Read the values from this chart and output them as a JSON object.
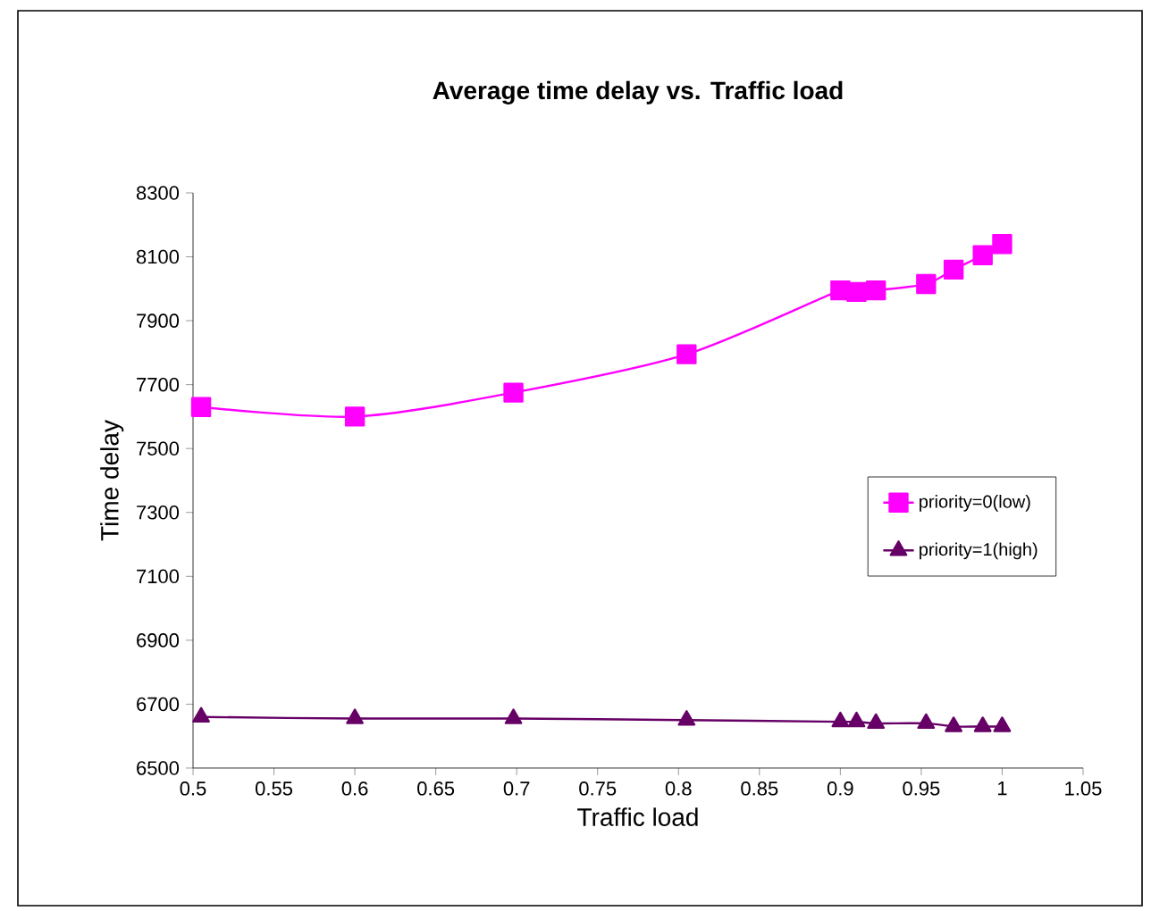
{
  "chart_data": {
    "type": "line",
    "title": "Average time delay vs. Traffic load",
    "xlabel": "Traffic load",
    "ylabel": "Time delay",
    "x": [
      0.505,
      0.6,
      0.698,
      0.805,
      0.9,
      0.91,
      0.922,
      0.953,
      0.97,
      0.988,
      1.0
    ],
    "series": [
      {
        "name": "priority=0(low)",
        "color": "#ff00ff",
        "marker": "square",
        "values": [
          7630,
          7600,
          7675,
          7795,
          7995,
          7990,
          7995,
          8015,
          8060,
          8105,
          8140
        ]
      },
      {
        "name": "priority=1(high)",
        "color": "#660066",
        "marker": "triangle",
        "values": [
          6660,
          6655,
          6655,
          6650,
          6645,
          6645,
          6640,
          6640,
          6630,
          6630,
          6630
        ]
      }
    ],
    "xlim": [
      0.5,
      1.05
    ],
    "xticks": [
      0.5,
      0.55,
      0.6,
      0.65,
      0.7,
      0.75,
      0.8,
      0.85,
      0.9,
      0.95,
      1,
      1.05
    ],
    "ylim": [
      6500,
      8300
    ],
    "yticks": [
      6500,
      6700,
      6900,
      7100,
      7300,
      7500,
      7700,
      7900,
      8100,
      8300
    ],
    "legend": "right"
  }
}
